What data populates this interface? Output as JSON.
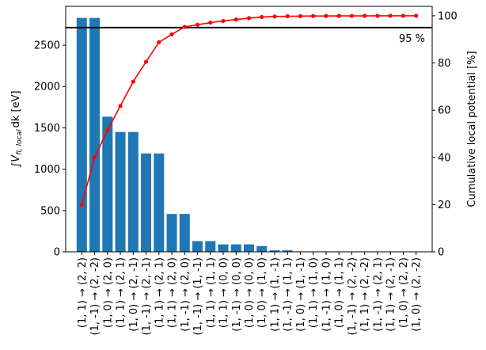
{
  "chart_data": {
    "type": "bar",
    "categories": [
      "(1, 1) → (2, 2)",
      "(1, -1) → (2, -2)",
      "(1, 0) → (2, 0)",
      "(1, 1) → (2, 1)",
      "(1, 0) → (2, -1)",
      "(1, -1) → (2, -1)",
      "(1, 1) → (2, 1)",
      "(1, 1) → (2, 0)",
      "(1, -1) → (2, 0)",
      "(1, -1) → (1, -1)",
      "(1, 1) → (1, 1)",
      "(1, 1) → (0, 0)",
      "(1, -1) → (0, 0)",
      "(1, 0) → (0, 0)",
      "(1, 0) → (1, 0)",
      "(1, 1) → (1, -1)",
      "(1, -1) → (1, 1)",
      "(1, 0) → (1, -1)",
      "(1, 1) → (1, 0)",
      "(1, -1) → (1, 0)",
      "(1, 0) → (1, 1)",
      "(1, -1) → (2, -2)",
      "(1, 1) → (2, -2)",
      "(1, -1) → (2, 1)",
      "(1, 1) → (2, -1)",
      "(1, 0) → (2, 2)",
      "(1, 0) → (2, -2)"
    ],
    "values": [
      2830,
      2830,
      1635,
      1450,
      1450,
      1190,
      1190,
      458,
      458,
      130,
      130,
      90,
      90,
      90,
      70,
      18,
      18,
      4,
      4,
      4,
      3,
      2,
      2,
      1,
      1,
      1,
      1
    ],
    "cumulative_percent": [
      20,
      40,
      51.5,
      61.8,
      72.1,
      80.5,
      88.8,
      92.1,
      95.3,
      96.2,
      97.1,
      97.8,
      98.4,
      99.0,
      99.5,
      99.7,
      99.8,
      99.85,
      99.9,
      99.92,
      99.94,
      99.96,
      99.97,
      99.98,
      99.99,
      99.995,
      100
    ],
    "ylim_left": [
      0,
      2970
    ],
    "ylim_right": [
      0,
      104
    ],
    "yticks_left": [
      "0",
      "500",
      "1000",
      "1500",
      "2000",
      "2500"
    ],
    "yticks_right": [
      "0",
      "20",
      "40",
      "60",
      "80",
      "100"
    ],
    "threshold_percent": 95,
    "threshold_label": "95 %",
    "ylabel_left_prefix": "∫",
    "ylabel_left_v": "V",
    "ylabel_left_sub": "fi, local",
    "ylabel_left_suffix": "dk [eV]",
    "ylabel_right": "Cumulative local potential [%]",
    "bar_color": "#1f77b4",
    "line_color": "#ff0000",
    "threshold_color": "#000000"
  }
}
